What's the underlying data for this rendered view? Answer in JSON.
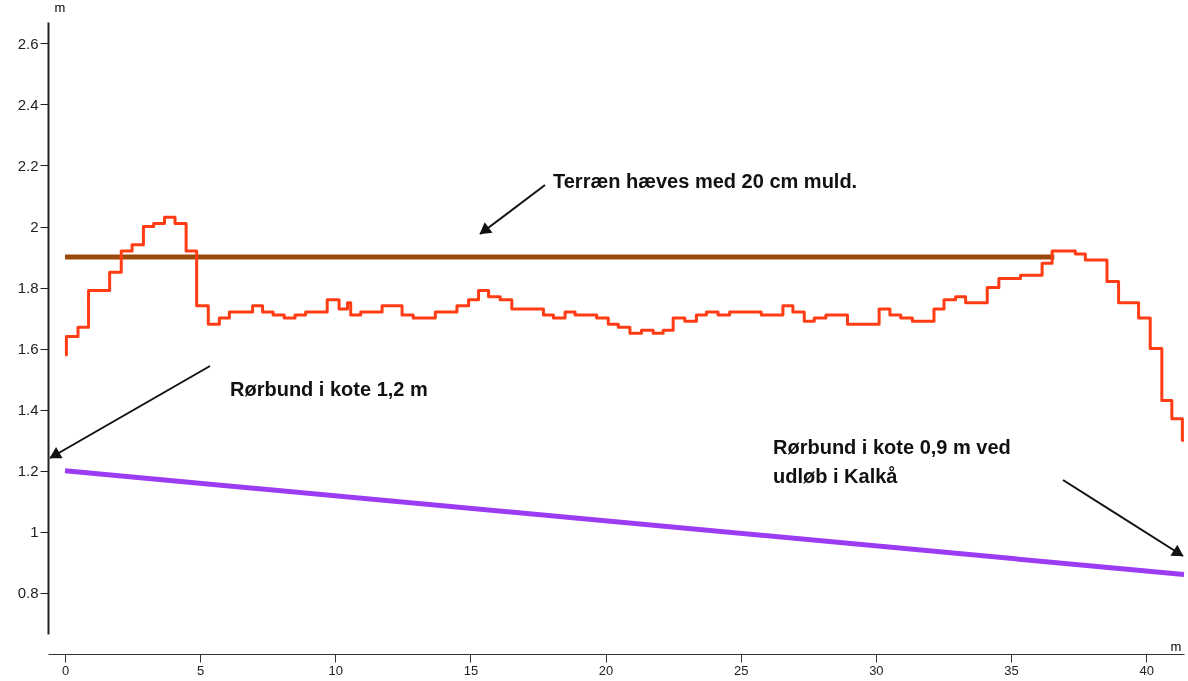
{
  "chart_data": {
    "type": "step",
    "xlabel": "m",
    "ylabel": "m",
    "xlim": [
      -0.63,
      41.4
    ],
    "ylim": [
      0.665,
      2.67
    ],
    "xticks": [
      0,
      5,
      10,
      15,
      20,
      25,
      30,
      35,
      40
    ],
    "yticks": [
      0.8,
      1,
      1.2,
      1.4,
      1.6,
      1.8,
      2,
      2.2,
      2.4,
      2.6
    ],
    "grid": false,
    "marker": "none",
    "line_style": "solid",
    "series": [
      {
        "type": "line",
        "color": "#9c4a0c",
        "x": [
          0,
          36.6
        ],
        "values": [
          1.9,
          1.9
        ]
      },
      {
        "type": "line",
        "color": "#9b3cf2",
        "x": [
          0,
          41.4
        ],
        "values": [
          1.2,
          0.86
        ]
      },
      {
        "color": "#ff3c14",
        "x": [
          0,
          0.05,
          0.48,
          0.87,
          1.65,
          2.08,
          2.48,
          2.9,
          3.28,
          3.68,
          4.07,
          4.48,
          4.87,
          5.3,
          5.71,
          6.08,
          6.94,
          7.31,
          7.7,
          8.11,
          8.51,
          8.9,
          9.7,
          10.14,
          10.45,
          10.57,
          10.94,
          11.73,
          12.47,
          12.88,
          13.7,
          14.5,
          14.93,
          15.3,
          15.67,
          16.1,
          16.53,
          17.7,
          18.07,
          18.5,
          18.87,
          19.67,
          20.1,
          20.47,
          20.9,
          21.33,
          21.76,
          22.13,
          22.5,
          22.93,
          23.36,
          23.73,
          24.16,
          24.59,
          25.76,
          26.56,
          26.93,
          27.35,
          27.72,
          28.15,
          28.95,
          30.12,
          30.52,
          30.92,
          31.35,
          32.15,
          32.52,
          32.95,
          33.32,
          34.12,
          34.55,
          35.35,
          36.15,
          36.52,
          37.38,
          37.75,
          38.55,
          38.98,
          39.72,
          40.15,
          40.58,
          40.95,
          41.34,
          41.4
        ],
        "values": [
          1.58,
          1.64,
          1.67,
          1.79,
          1.85,
          1.92,
          1.94,
          2.0,
          2.01,
          2.03,
          2.01,
          1.92,
          1.74,
          1.68,
          1.7,
          1.72,
          1.74,
          1.72,
          1.71,
          1.7,
          1.71,
          1.72,
          1.76,
          1.73,
          1.75,
          1.71,
          1.72,
          1.74,
          1.71,
          1.7,
          1.72,
          1.74,
          1.76,
          1.79,
          1.77,
          1.76,
          1.73,
          1.71,
          1.7,
          1.72,
          1.71,
          1.7,
          1.68,
          1.67,
          1.65,
          1.66,
          1.65,
          1.66,
          1.7,
          1.69,
          1.71,
          1.72,
          1.71,
          1.72,
          1.71,
          1.74,
          1.72,
          1.69,
          1.7,
          1.71,
          1.68,
          1.73,
          1.71,
          1.7,
          1.69,
          1.73,
          1.76,
          1.77,
          1.75,
          1.8,
          1.83,
          1.84,
          1.88,
          1.92,
          1.91,
          1.89,
          1.82,
          1.75,
          1.7,
          1.6,
          1.43,
          1.37,
          1.3,
          1.3
        ]
      }
    ],
    "annotations": [
      "Terræn hæves med 20 cm muld.",
      "Rørbund i kote 1,2 m",
      "Rørbund i kote 0,9 m ved\nudløb i Kalkå"
    ]
  }
}
